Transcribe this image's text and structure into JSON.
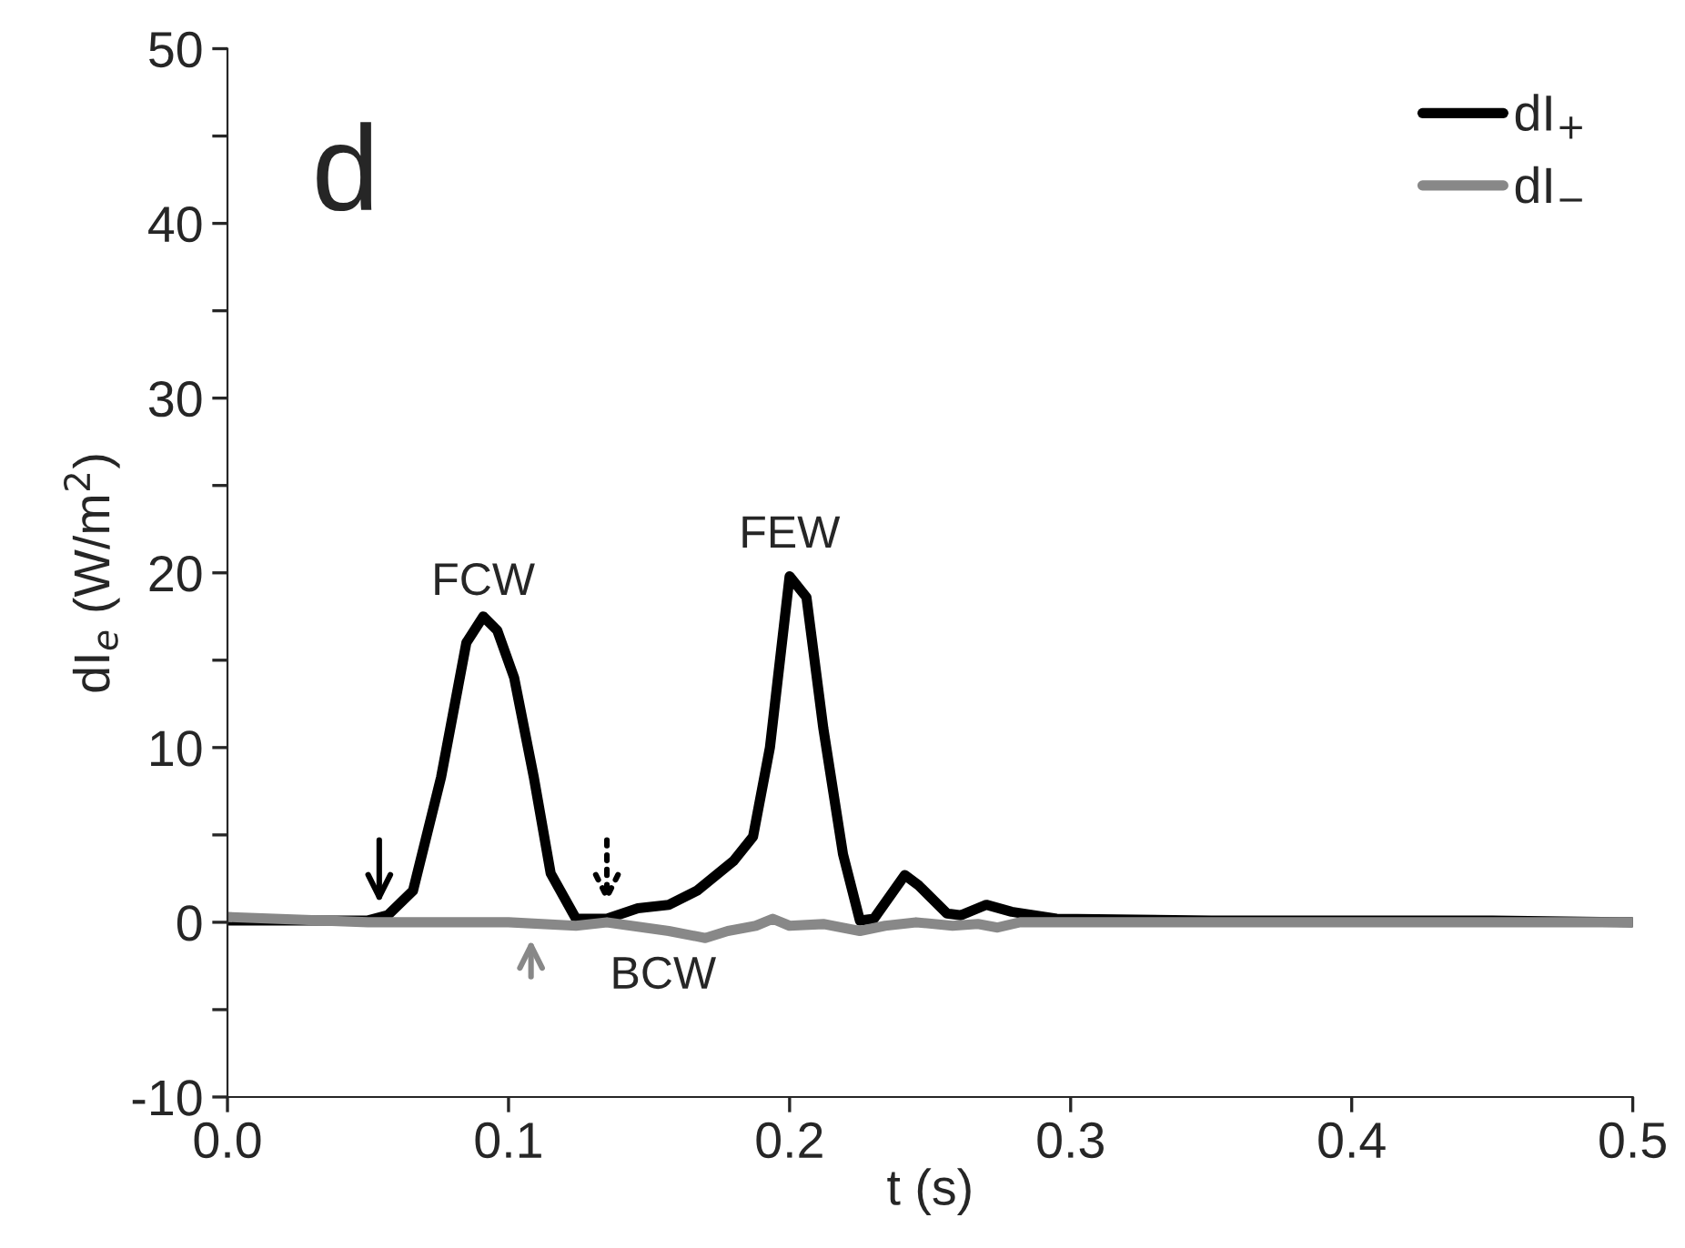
{
  "chart_data": {
    "type": "line",
    "xlabel": "t (s)",
    "ylabel": "dI$_{e}$ (W/m$^{2}$)",
    "xlim": [
      0.0,
      0.5
    ],
    "ylim": [
      -10,
      50
    ],
    "xticks": [
      {
        "value": 0.0,
        "label": "0.0"
      },
      {
        "value": 0.1,
        "label": "0.1"
      },
      {
        "value": 0.2,
        "label": "0.2"
      },
      {
        "value": 0.3,
        "label": "0.3"
      },
      {
        "value": 0.4,
        "label": "0.4"
      },
      {
        "value": 0.5,
        "label": "0.5"
      }
    ],
    "yticks": [
      -10,
      {
        "value": -5,
        "label": null
      },
      0,
      {
        "value": 5,
        "label": null
      },
      10,
      {
        "value": 15,
        "label": null
      },
      20,
      {
        "value": 25,
        "label": null
      },
      30,
      {
        "value": 35,
        "label": null
      },
      40,
      {
        "value": 45,
        "label": null
      },
      50
    ],
    "grid": false,
    "legend": "top right",
    "line_style": "solid",
    "marker": "none",
    "series": [
      {
        "name": "dI$_{+}$",
        "color": "#000000",
        "x": [
          0.0,
          0.03,
          0.05,
          0.057,
          0.066,
          0.076,
          0.085,
          0.091,
          0.096,
          0.102,
          0.109,
          0.115,
          0.124,
          0.135,
          0.146,
          0.157,
          0.167,
          0.18,
          0.187,
          0.193,
          0.2,
          0.206,
          0.212,
          0.219,
          0.225,
          0.23,
          0.241,
          0.246,
          0.256,
          0.261,
          0.27,
          0.279,
          0.295,
          0.35,
          0.4,
          0.45,
          0.5
        ],
        "values": [
          0.1,
          0.1,
          0.1,
          0.4,
          1.8,
          8.3,
          16,
          17.5,
          16.7,
          14,
          8.3,
          2.8,
          0.2,
          0.2,
          0.8,
          1.0,
          1.8,
          3.5,
          4.9,
          10,
          19.8,
          18.6,
          11.1,
          3.9,
          0.1,
          0.2,
          2.7,
          2.1,
          0.5,
          0.4,
          1.0,
          0.6,
          0.2,
          0.1,
          0.1,
          0.1,
          0.0
        ]
      },
      {
        "name": "dI$_{−}$",
        "color": "#888888",
        "x": [
          0.0,
          0.05,
          0.1,
          0.124,
          0.135,
          0.157,
          0.17,
          0.178,
          0.188,
          0.194,
          0.2,
          0.212,
          0.225,
          0.234,
          0.245,
          0.258,
          0.267,
          0.274,
          0.282,
          0.35,
          0.4,
          0.45,
          0.5
        ],
        "values": [
          0.3,
          0.0,
          0.0,
          -0.2,
          0.0,
          -0.5,
          -0.9,
          -0.5,
          -0.2,
          0.2,
          -0.2,
          -0.1,
          -0.5,
          -0.2,
          0.0,
          -0.2,
          -0.1,
          -0.3,
          0.0,
          0.0,
          0.0,
          0.0,
          0.0
        ]
      }
    ],
    "annotations": [
      "d",
      "FCW",
      "FEW",
      "BCW"
    ]
  }
}
